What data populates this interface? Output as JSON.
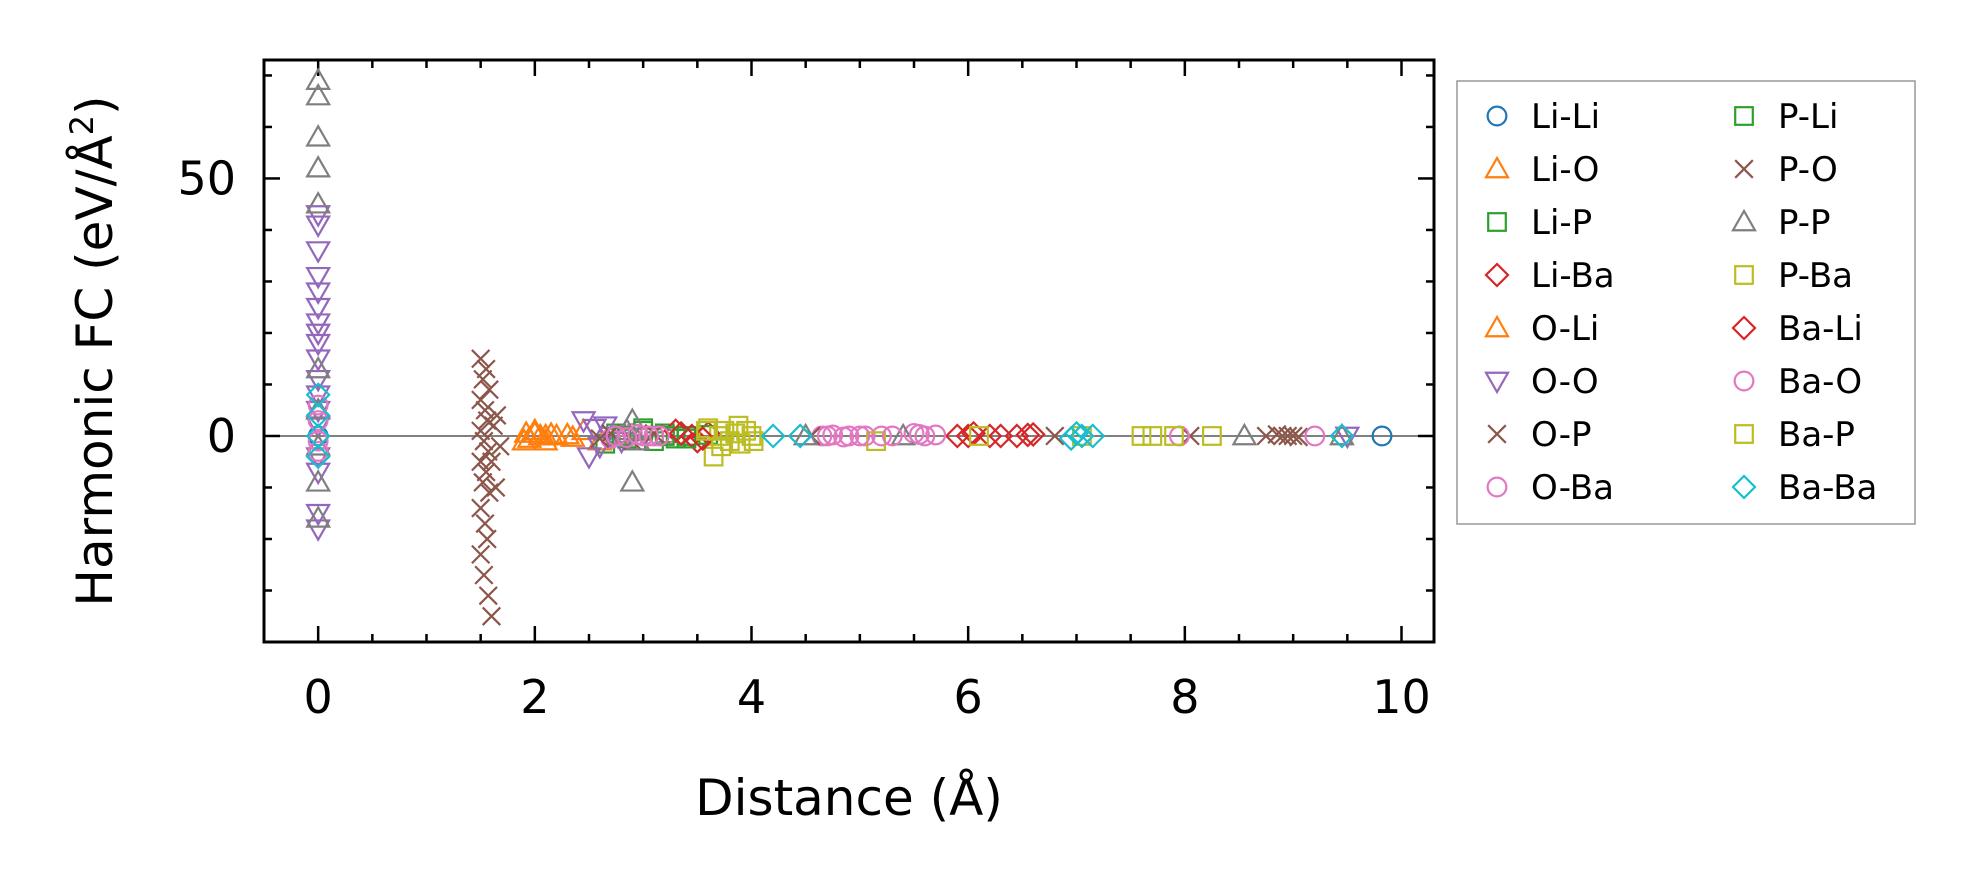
{
  "chart_data": {
    "type": "scatter",
    "xlabel": "Distance (Å)",
    "ylabel": "Harmonic FC (eV/Å²)",
    "ylabel_parts": {
      "main": "Harmonic FC (eV/Å",
      "sup": "2",
      "end": ")"
    },
    "xlim": [
      -0.5,
      10.3
    ],
    "ylim": [
      -40,
      73
    ],
    "x_ticks": [
      0,
      2,
      4,
      6,
      8,
      10
    ],
    "x_tick_labels": [
      "0",
      "2",
      "4",
      "6",
      "8",
      "10"
    ],
    "y_ticks": [
      0,
      50
    ],
    "y_tick_labels": [
      "0",
      "50"
    ],
    "zero_line": true,
    "grid": false,
    "legend_position": "outside-right",
    "series": [
      {
        "name": "Li-Li",
        "marker": "circle",
        "color": "#1f77b4",
        "x": [
          0,
          9.82
        ],
        "y": [
          0,
          0
        ]
      },
      {
        "name": "Li-O",
        "marker": "triangle-up",
        "color": "#ff7f0e",
        "x": [
          1.92,
          1.95,
          2.0,
          2.05,
          2.1,
          2.15,
          2.3,
          2.35
        ],
        "y": [
          0.5,
          -0.5,
          1.0,
          0,
          -1.0,
          0.3,
          0.2,
          -0.3
        ]
      },
      {
        "name": "Li-P",
        "marker": "square",
        "color": "#2ca02c",
        "x": [
          2.65,
          2.75,
          2.85,
          3.0,
          3.1,
          3.2,
          3.3,
          3.4
        ],
        "y": [
          -1.5,
          0.5,
          -0.5,
          1.5,
          -1.0,
          0.5,
          -0.5,
          0
        ]
      },
      {
        "name": "Li-Ba",
        "marker": "diamond",
        "color": "#d62728",
        "x": [
          3.3,
          3.45,
          3.5,
          3.6,
          5.9,
          6.05,
          6.2,
          6.45,
          6.6
        ],
        "y": [
          1.0,
          0,
          -1.0,
          0.5,
          0,
          0.5,
          0,
          0,
          0.3
        ]
      },
      {
        "name": "O-Li",
        "marker": "triangle-up",
        "color": "#ff7f0e",
        "x": [
          1.9,
          2.0,
          2.1,
          2.2,
          2.45,
          2.6
        ],
        "y": [
          -1.0,
          0.5,
          0,
          0,
          1.0,
          -1.0
        ]
      },
      {
        "name": "O-O",
        "marker": "triangle-down",
        "color": "#9467bd",
        "x": [
          0,
          0,
          0,
          0,
          0,
          0,
          0,
          0,
          0,
          0,
          0,
          0,
          0,
          0,
          0,
          0,
          0,
          0,
          2.45,
          2.5,
          2.55,
          2.6,
          2.65,
          2.7,
          2.8,
          9.5
        ],
        "y": [
          43,
          41,
          36,
          31,
          28,
          25,
          22,
          20,
          18,
          15,
          11,
          8,
          5,
          2,
          -4,
          -7,
          -15,
          -18,
          3,
          -4,
          1.5,
          -2,
          2,
          0,
          -1,
          0
        ]
      },
      {
        "name": "O-P",
        "marker": "x",
        "color": "#8c564b",
        "x": [
          1.5,
          1.55,
          1.52,
          1.58,
          1.5,
          1.54,
          1.56,
          1.5,
          1.53,
          1.57,
          1.5,
          1.55,
          1.52,
          1.58,
          1.5,
          1.54,
          1.56,
          1.5,
          1.53,
          1.57,
          1.6,
          1.65,
          1.62,
          1.68,
          1.6,
          1.64,
          8.75,
          8.85,
          8.95,
          9.05
        ],
        "y": [
          15,
          13,
          11,
          9,
          7,
          5,
          3,
          1,
          -1,
          -3,
          -5,
          -7,
          -9,
          -11,
          -14,
          -17,
          -20,
          -23,
          -27,
          -31,
          -35,
          4,
          2,
          -2,
          -5,
          -10,
          0,
          0.3,
          0,
          -0.2
        ]
      },
      {
        "name": "O-Ba",
        "marker": "circle",
        "color": "#e377c2",
        "x": [
          2.7,
          2.8,
          2.9,
          3.0,
          3.1,
          3.2,
          4.65,
          4.75,
          4.9,
          5.05,
          5.2,
          5.5,
          5.6,
          5.7,
          9.2
        ],
        "y": [
          -0.5,
          0,
          0.5,
          0,
          0,
          0,
          0,
          0.2,
          0,
          0,
          0,
          0.5,
          0,
          0.2,
          0
        ]
      },
      {
        "name": "P-Li",
        "marker": "square",
        "color": "#2ca02c",
        "x": [
          2.8,
          3.0,
          3.2,
          3.4,
          3.6
        ],
        "y": [
          0,
          1.0,
          0,
          -0.5,
          0.2
        ]
      },
      {
        "name": "P-O",
        "marker": "x",
        "color": "#8c564b",
        "x": [
          2.6,
          2.7,
          2.9,
          3.1,
          4.55,
          6.8,
          8.05,
          8.9,
          9.0
        ],
        "y": [
          -0.5,
          0.5,
          -1.0,
          0.5,
          0,
          0,
          0,
          0,
          0
        ]
      },
      {
        "name": "P-P",
        "marker": "triangle-up",
        "color": "#7f7f7f",
        "x": [
          0,
          0,
          0,
          0,
          0,
          0,
          0,
          0,
          0,
          0,
          2.9,
          2.9,
          2.85,
          2.95,
          4.5,
          5.4,
          8.55,
          9.45
        ],
        "y": [
          69,
          66,
          58,
          52,
          45,
          13,
          5,
          -2,
          -9,
          -16,
          -9,
          3,
          1,
          -1,
          0,
          0,
          0,
          0
        ]
      },
      {
        "name": "P-Ba",
        "marker": "square",
        "color": "#bcbd22",
        "x": [
          3.6,
          3.65,
          3.7,
          3.75,
          3.8,
          3.85,
          3.9,
          3.95,
          4.0,
          5.15,
          7.05,
          7.7,
          8.25
        ],
        "y": [
          1.5,
          -4,
          0,
          1,
          -1,
          0.5,
          -1.5,
          1,
          0,
          -1,
          0,
          0,
          0
        ]
      },
      {
        "name": "Ba-Li",
        "marker": "diamond",
        "color": "#d62728",
        "x": [
          3.35,
          3.55,
          6.0,
          6.3,
          6.55
        ],
        "y": [
          0.5,
          -0.5,
          0,
          0,
          0.2
        ]
      },
      {
        "name": "Ba-O",
        "marker": "circle",
        "color": "#e377c2",
        "x": [
          0,
          0,
          0,
          0,
          2.75,
          2.85,
          2.95,
          3.05,
          3.15,
          4.7,
          4.85,
          5.0,
          5.3,
          5.55,
          7.95
        ],
        "y": [
          6,
          3,
          -1,
          -3,
          0,
          -0.3,
          0.3,
          0,
          0,
          0,
          -0.2,
          0,
          0,
          0.3,
          0
        ]
      },
      {
        "name": "Ba-P",
        "marker": "square",
        "color": "#bcbd22",
        "x": [
          3.58,
          3.72,
          3.88,
          4.02,
          6.1,
          7.6,
          7.9
        ],
        "y": [
          1,
          -2,
          2,
          -1,
          0,
          0,
          0
        ]
      },
      {
        "name": "Ba-Ba",
        "marker": "diamond",
        "color": "#17becf",
        "x": [
          0,
          0,
          0,
          0,
          4.2,
          4.45,
          6.95,
          7.0,
          7.05,
          7.15,
          9.45
        ],
        "y": [
          8,
          4,
          0,
          -4,
          0,
          0,
          -0.5,
          0.5,
          0,
          0,
          0
        ]
      }
    ]
  }
}
